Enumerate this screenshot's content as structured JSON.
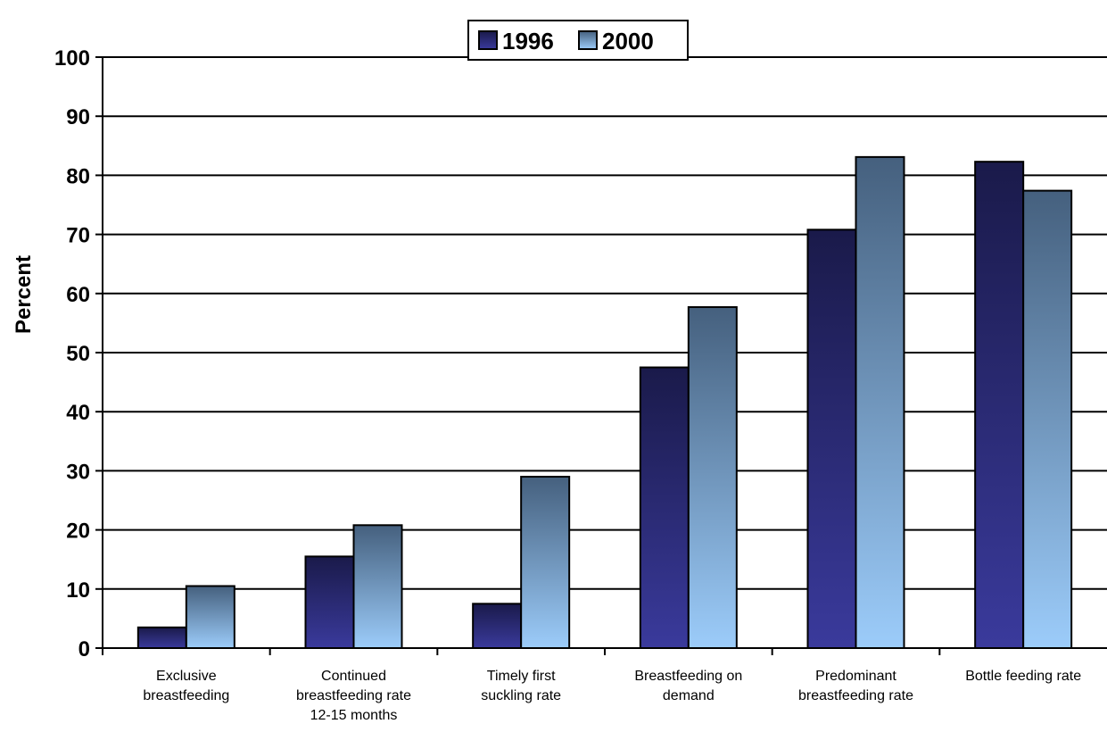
{
  "chart_data": {
    "type": "bar",
    "title": "",
    "xlabel": "",
    "ylabel": "Percent",
    "ylim": [
      0,
      100
    ],
    "yticks": [
      0,
      10,
      20,
      30,
      40,
      50,
      60,
      70,
      80,
      90,
      100
    ],
    "grid": true,
    "legend_position": "top-center",
    "categories": [
      [
        "Exclusive",
        "breastfeeding"
      ],
      [
        "Continued",
        "breastfeeding rate",
        "12-15 months"
      ],
      [
        "Timely first",
        "suckling rate"
      ],
      [
        "Breastfeeding on",
        "demand"
      ],
      [
        "Predominant",
        "breastfeeding rate"
      ],
      [
        "Bottle feeding rate"
      ]
    ],
    "series": [
      {
        "name": "1996",
        "values": [
          3.5,
          15.5,
          7.5,
          47.5,
          70.8,
          82.3
        ]
      },
      {
        "name": "2000",
        "values": [
          10.5,
          20.8,
          29.0,
          57.7,
          83.1,
          77.4
        ]
      }
    ],
    "colors": {
      "series_1996_top": "#1a1a4a",
      "series_1996_bottom": "#3a3a9c",
      "series_2000_top": "#45607e",
      "series_2000_bottom": "#9cccfa"
    }
  }
}
